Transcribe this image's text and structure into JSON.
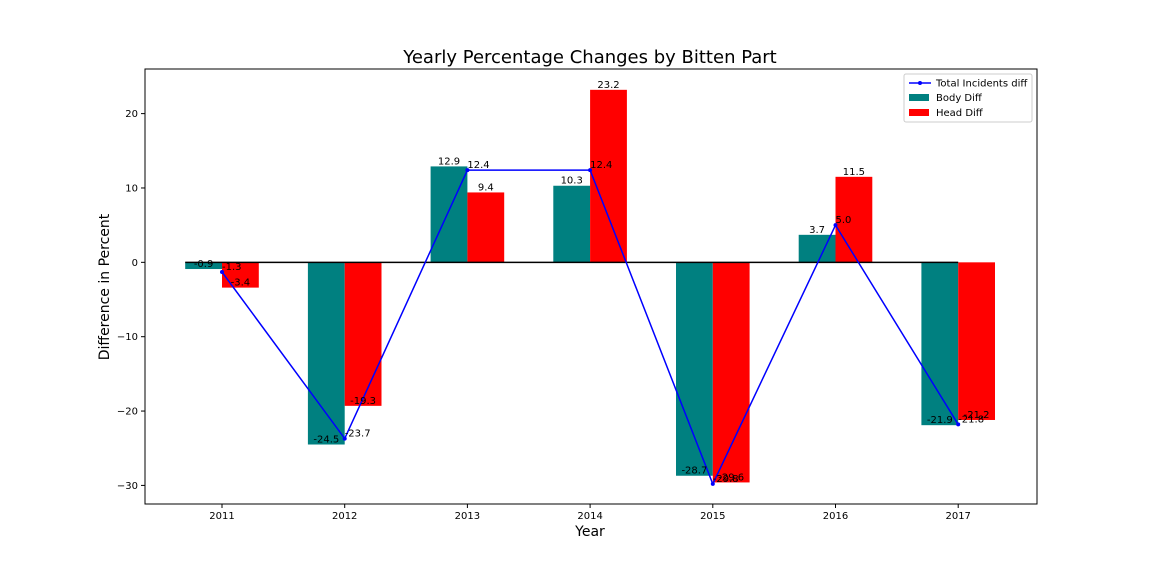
{
  "chart_data": {
    "type": "bar",
    "title": "Yearly Percentage Changes by Bitten Part",
    "xlabel": "Year",
    "ylabel": "Difference in Percent",
    "categories": [
      "2011",
      "2012",
      "2013",
      "2014",
      "2015",
      "2016",
      "2017"
    ],
    "ylim": [
      -32.5,
      26
    ],
    "yticks": [
      -30,
      -20,
      -10,
      0,
      10,
      20
    ],
    "ytick_labels": [
      "−30",
      "−20",
      "−10",
      "0",
      "10",
      "20"
    ],
    "grid": false,
    "legend_position": "top-right",
    "series": [
      {
        "name": "Total Incidents diff",
        "kind": "line",
        "color": "#0000ff",
        "values": [
          -1.3,
          -23.7,
          12.4,
          12.4,
          -29.8,
          5.0,
          -21.8
        ],
        "labels": [
          "-1.3",
          "-23.7",
          "12.4",
          "12.4",
          "-29.8",
          "5.0",
          "-21.8"
        ]
      },
      {
        "name": "Body Diff",
        "kind": "bar",
        "color": "#008080",
        "values": [
          -0.9,
          -24.5,
          12.9,
          10.3,
          -28.7,
          3.7,
          -21.9
        ],
        "labels": [
          "-0.9",
          "-24.5",
          "12.9",
          "10.3",
          "-28.7",
          "3.7",
          "-21.9"
        ]
      },
      {
        "name": "Head Diff",
        "kind": "bar",
        "color": "#ff0000",
        "values": [
          -3.4,
          -19.3,
          9.4,
          23.2,
          -29.6,
          11.5,
          -21.2
        ],
        "labels": [
          "-3.4",
          "-19.3",
          "9.4",
          "23.2",
          "-29.6",
          "11.5",
          "-21.2"
        ]
      }
    ]
  }
}
